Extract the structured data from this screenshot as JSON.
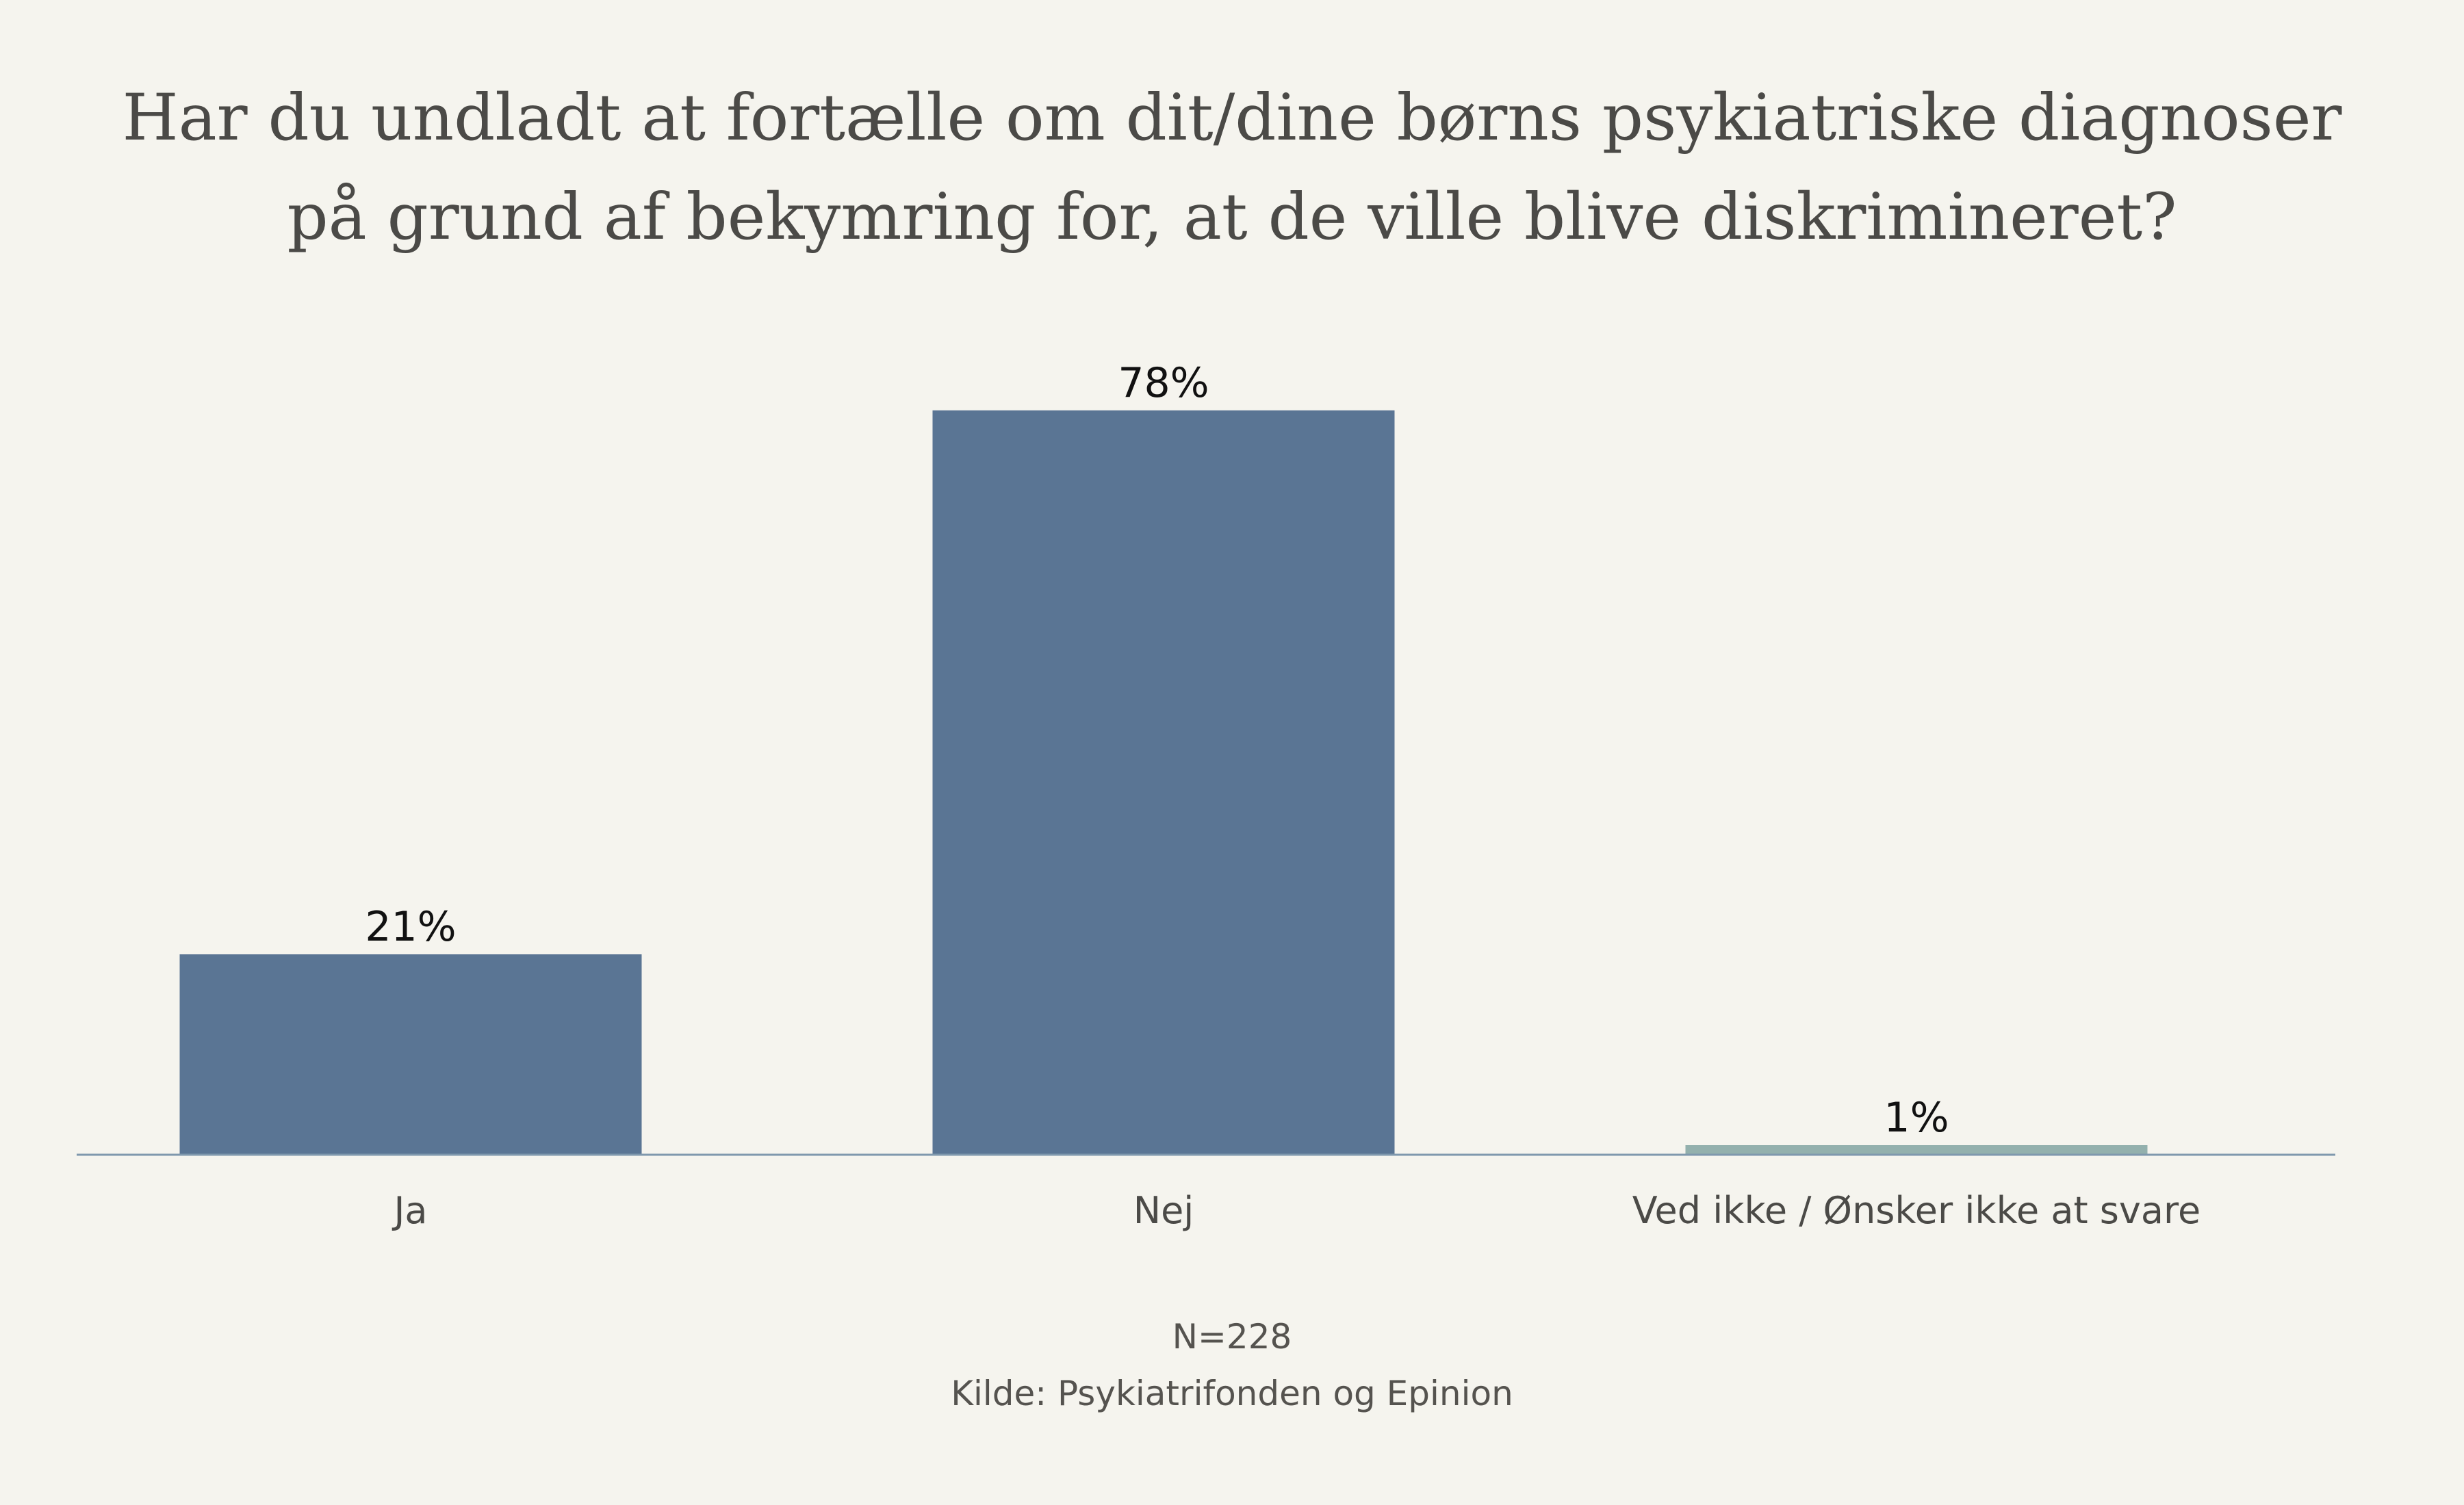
{
  "chart_data": {
    "type": "bar",
    "title_lines": [
      "Har du undladt at fortælle om dit/dine børns psykiatriske diagnoser",
      "på grund af bekymring for, at de ville blive diskrimineret?"
    ],
    "categories": [
      "Ja",
      "Nej",
      "Ved ikke / Ønsker ikke at svare"
    ],
    "values": [
      21,
      78,
      1
    ],
    "data_labels": [
      "21%",
      "78%",
      "1%"
    ],
    "bar_colors": [
      "#5a7594",
      "#5a7594",
      "#93b0ad"
    ],
    "value_unit": "%",
    "ylim": [
      0,
      100
    ],
    "grid": false,
    "legend": "none"
  },
  "footer": {
    "n_label": "N=228",
    "source": "Kilde: Psykiatrifonden og Epinion"
  },
  "colors": {
    "background": "#f5f4ee",
    "axis_line": "#7f98ad",
    "text": "#4b4a47",
    "data_label": "#111111"
  }
}
